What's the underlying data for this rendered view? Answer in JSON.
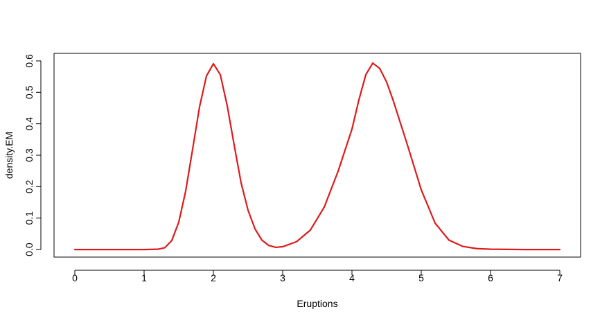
{
  "chart_data": {
    "type": "line",
    "title": "",
    "xlabel": "Eruptions",
    "ylabel": "density.EM",
    "xlim": [
      -0.3,
      7.3
    ],
    "ylim": [
      -0.024,
      0.624
    ],
    "x_ticks": [
      0,
      1,
      2,
      3,
      4,
      5,
      6,
      7
    ],
    "x_tick_labels": [
      "0",
      "1",
      "2",
      "3",
      "4",
      "5",
      "6",
      "7"
    ],
    "y_ticks": [
      0.0,
      0.1,
      0.2,
      0.3,
      0.4,
      0.5,
      0.6
    ],
    "y_tick_labels": [
      "0.0",
      "0.1",
      "0.2",
      "0.3",
      "0.4",
      "0.5",
      "0.6"
    ],
    "grid": false,
    "legend": "none",
    "series": [
      {
        "color": "#e0191b",
        "x": [
          0.0,
          0.2,
          0.4,
          0.6,
          0.8,
          1.0,
          1.2,
          1.3,
          1.4,
          1.5,
          1.6,
          1.7,
          1.8,
          1.9,
          2.0,
          2.1,
          2.2,
          2.3,
          2.4,
          2.5,
          2.6,
          2.7,
          2.8,
          2.9,
          3.0,
          3.2,
          3.4,
          3.6,
          3.8,
          4.0,
          4.1,
          4.2,
          4.3,
          4.4,
          4.5,
          4.6,
          4.8,
          5.0,
          5.2,
          5.4,
          5.6,
          5.8,
          6.0,
          6.5,
          7.0
        ],
        "y": [
          0.0,
          0.0,
          0.0,
          0.0,
          0.0,
          0.0,
          0.001,
          0.006,
          0.029,
          0.087,
          0.186,
          0.319,
          0.454,
          0.552,
          0.591,
          0.556,
          0.457,
          0.332,
          0.212,
          0.125,
          0.066,
          0.03,
          0.013,
          0.007,
          0.009,
          0.025,
          0.062,
          0.135,
          0.249,
          0.383,
          0.476,
          0.556,
          0.593,
          0.576,
          0.533,
          0.471,
          0.333,
          0.19,
          0.084,
          0.03,
          0.01,
          0.003,
          0.001,
          0.0,
          0.0
        ]
      }
    ]
  }
}
